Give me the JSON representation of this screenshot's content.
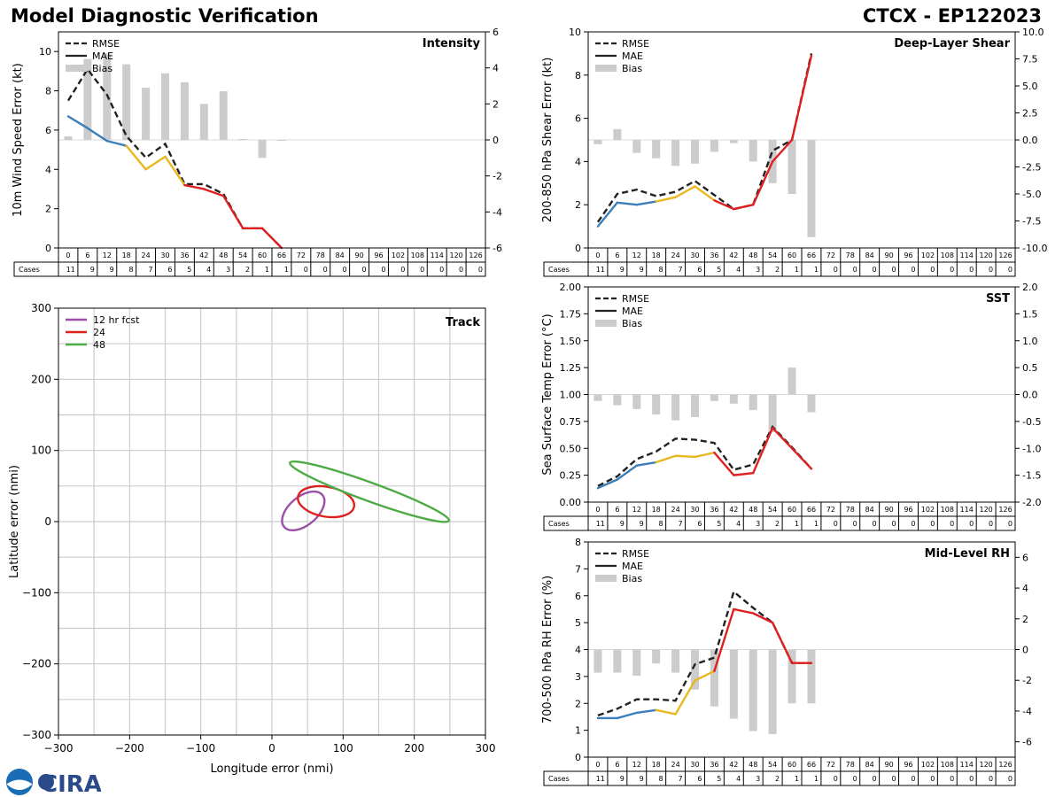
{
  "header": {
    "title_left": "Model Diagnostic Verification",
    "title_right": "CTCX - EP122023"
  },
  "logo": {
    "text": "CIRA"
  },
  "colors": {
    "rmse": "#222222",
    "mae": "#222222",
    "bias": "#cccccc",
    "seg_early": "#3a7fba",
    "seg_mid": "#e8b820",
    "seg_late": "#dd2020",
    "track_12": "#9a4ea6",
    "track_24": "#dd2020",
    "track_48": "#4dab45",
    "grid": "#cccccc"
  },
  "chart_data": [
    {
      "id": "intensity",
      "type": "line",
      "title": "Intensity",
      "ylabel": "10m Wind Speed Error (kt)",
      "ylim": [
        0,
        11
      ],
      "yticks": [
        0,
        2,
        4,
        6,
        8,
        10
      ],
      "y2lim": [
        -6,
        6
      ],
      "y2ticks": [
        -6,
        -4,
        -2,
        0,
        2,
        4,
        6
      ],
      "legend": [
        "RMSE",
        "MAE",
        "Bias"
      ],
      "x": [
        0,
        6,
        12,
        18,
        24,
        30,
        36,
        42,
        48,
        54,
        60,
        66,
        72,
        78,
        84,
        90,
        96,
        102,
        108,
        114,
        120,
        126
      ],
      "cases": [
        11,
        9,
        9,
        8,
        7,
        6,
        5,
        4,
        3,
        2,
        1,
        1,
        0,
        0,
        0,
        0,
        0,
        0,
        0,
        0,
        0,
        0
      ],
      "rmse": [
        7.5,
        9.1,
        7.8,
        5.7,
        4.6,
        5.3,
        3.25,
        3.25,
        2.75,
        1.0,
        1.0,
        0
      ],
      "mae": [
        6.7,
        6.1,
        5.45,
        5.2,
        4.0,
        4.65,
        3.2,
        3.0,
        2.65,
        1.0,
        1.0,
        0
      ],
      "bias": [
        0.2,
        4.5,
        4.8,
        4.2,
        2.9,
        3.7,
        3.2,
        2.0,
        2.7,
        0.05,
        -1.0,
        0.0
      ]
    },
    {
      "id": "shear",
      "type": "line",
      "title": "Deep-Layer Shear",
      "ylabel": "200-850 hPa Shear Error (kt)",
      "ylim": [
        0,
        10
      ],
      "yticks": [
        0,
        2,
        4,
        6,
        8,
        10
      ],
      "y2lim": [
        -10,
        10
      ],
      "y2ticks": [
        "-10.0",
        "-7.5",
        "-5.0",
        "-2.5",
        "0.0",
        "2.5",
        "5.0",
        "7.5",
        "10.0"
      ],
      "legend": [
        "RMSE",
        "MAE",
        "Bias"
      ],
      "x": [
        0,
        6,
        12,
        18,
        24,
        30,
        36,
        42,
        48,
        54,
        60,
        66,
        72,
        78,
        84,
        90,
        96,
        102,
        108,
        114,
        120,
        126
      ],
      "cases": [
        11,
        9,
        9,
        8,
        7,
        6,
        5,
        4,
        3,
        2,
        1,
        1,
        0,
        0,
        0,
        0,
        0,
        0,
        0,
        0,
        0,
        0
      ],
      "rmse": [
        1.2,
        2.5,
        2.7,
        2.4,
        2.6,
        3.1,
        2.45,
        1.8,
        2.0,
        4.5,
        5.0,
        9.0
      ],
      "mae": [
        1.0,
        2.1,
        2.0,
        2.15,
        2.35,
        2.85,
        2.2,
        1.8,
        2.0,
        4.0,
        5.0,
        8.9
      ],
      "bias": [
        -0.4,
        1.0,
        -1.2,
        -1.7,
        -2.4,
        -2.2,
        -1.1,
        -0.3,
        -2.0,
        -4.0,
        -5.0,
        -9.0
      ]
    },
    {
      "id": "sst",
      "type": "line",
      "title": "SST",
      "ylabel": "Sea Surface Temp Error (°C)",
      "ylim": [
        0,
        2
      ],
      "yticks": [
        "0.00",
        "0.25",
        "0.50",
        "0.75",
        "1.00",
        "1.25",
        "1.50",
        "1.75",
        "2.00"
      ],
      "y2lim": [
        -2,
        2
      ],
      "y2ticks": [
        "-2.0",
        "-1.5",
        "-1.0",
        "-0.5",
        "0.0",
        "0.5",
        "1.0",
        "1.5",
        "2.0"
      ],
      "legend": [
        "RMSE",
        "MAE",
        "Bias"
      ],
      "x": [
        0,
        6,
        12,
        18,
        24,
        30,
        36,
        42,
        48,
        54,
        60,
        66,
        72,
        78,
        84,
        90,
        96,
        102,
        108,
        114,
        120,
        126
      ],
      "cases": [
        11,
        9,
        9,
        8,
        7,
        6,
        5,
        4,
        3,
        2,
        1,
        1,
        0,
        0,
        0,
        0,
        0,
        0,
        0,
        0,
        0,
        0
      ],
      "rmse": [
        0.15,
        0.24,
        0.4,
        0.47,
        0.59,
        0.58,
        0.55,
        0.3,
        0.35,
        0.7,
        0.51,
        0.31
      ],
      "mae": [
        0.13,
        0.21,
        0.34,
        0.37,
        0.43,
        0.42,
        0.46,
        0.25,
        0.27,
        0.69,
        0.5,
        0.31
      ],
      "bias": [
        -0.12,
        -0.2,
        -0.27,
        -0.37,
        -0.48,
        -0.42,
        -0.12,
        -0.17,
        -0.29,
        -0.7,
        0.5,
        -0.33
      ]
    },
    {
      "id": "rh",
      "type": "line",
      "title": "Mid-Level RH",
      "ylabel": "700-500 hPa RH Error (%)",
      "ylim": [
        0,
        8
      ],
      "yticks": [
        0,
        1,
        2,
        3,
        4,
        5,
        6,
        7,
        8
      ],
      "y2lim": [
        -7,
        7
      ],
      "y2ticks": [
        -6,
        -4,
        -2,
        0,
        2,
        4,
        6
      ],
      "legend": [
        "RMSE",
        "MAE",
        "Bias"
      ],
      "x": [
        0,
        6,
        12,
        18,
        24,
        30,
        36,
        42,
        48,
        54,
        60,
        66,
        72,
        78,
        84,
        90,
        96,
        102,
        108,
        114,
        120,
        126
      ],
      "cases": [
        11,
        9,
        9,
        8,
        7,
        6,
        5,
        4,
        3,
        2,
        1,
        1,
        0,
        0,
        0,
        0,
        0,
        0,
        0,
        0,
        0,
        0
      ],
      "rmse": [
        1.55,
        1.8,
        2.15,
        2.15,
        2.1,
        3.45,
        3.7,
        6.15,
        5.55,
        5.0,
        3.5,
        3.5
      ],
      "mae": [
        1.45,
        1.45,
        1.65,
        1.75,
        1.6,
        2.85,
        3.2,
        5.5,
        5.35,
        5.0,
        3.5,
        3.5
      ],
      "bias": [
        -1.5,
        -1.5,
        -1.7,
        -0.9,
        -1.5,
        -2.6,
        -3.7,
        -4.5,
        -5.3,
        -5.5,
        -3.5,
        -3.5
      ]
    },
    {
      "id": "track",
      "type": "scatter",
      "title": "Track",
      "xlabel": "Longitude error (nmi)",
      "ylabel": "Latitude error (nmi)",
      "xlim": [
        -300,
        300
      ],
      "ylim": [
        -300,
        300
      ],
      "xticks": [
        "−300",
        "−200",
        "−100",
        "0",
        "100",
        "200",
        "300"
      ],
      "yticks": [
        "−300",
        "−200",
        "−100",
        "0",
        "100",
        "200",
        "300"
      ],
      "grid": true,
      "legend": [
        "12 hr fcst",
        "24",
        "48"
      ],
      "ellipses": [
        {
          "name": "12 hr fcst",
          "cx": 44,
          "cy": 15,
          "rx": 35,
          "ry": 20,
          "angle": -40
        },
        {
          "name": "24",
          "cx": 76,
          "cy": 28,
          "rx": 40,
          "ry": 21,
          "angle": 10
        },
        {
          "name": "48",
          "cx": 137,
          "cy": 42,
          "rx": 119,
          "ry": 13,
          "angle": 20
        }
      ]
    }
  ]
}
